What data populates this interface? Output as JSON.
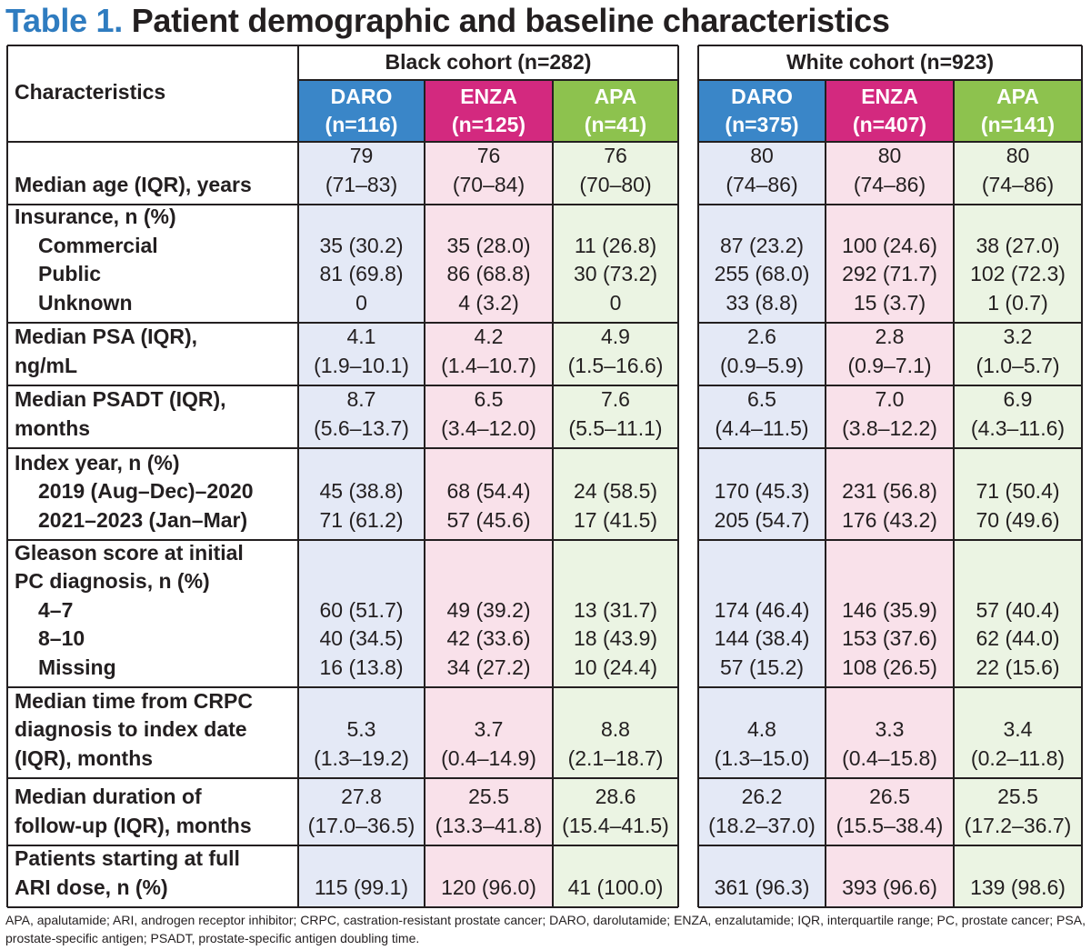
{
  "title": {
    "label": "Table 1.",
    "text": "Patient demographic and baseline characteristics"
  },
  "header": {
    "characteristics": "Characteristics",
    "cohorts": [
      {
        "name": "Black cohort (n=282)",
        "groups": [
          {
            "drug": "DARO",
            "n": "(n=116)"
          },
          {
            "drug": "ENZA",
            "n": "(n=125)"
          },
          {
            "drug": "APA",
            "n": "(n=41)"
          }
        ]
      },
      {
        "name": "White cohort (n=923)",
        "groups": [
          {
            "drug": "DARO",
            "n": "(n=375)"
          },
          {
            "drug": "ENZA",
            "n": "(n=407)"
          },
          {
            "drug": "APA",
            "n": "(n=141)"
          }
        ]
      }
    ]
  },
  "colors": {
    "DARO": "#3a86c8",
    "ENZA": "#d3297f",
    "APA": "#8dc24e",
    "DARO_bg": "#e4e9f6",
    "ENZA_bg": "#f9e1ea",
    "APA_bg": "#ebf4e3"
  },
  "rows": [
    {
      "label": [
        "Median age (IQR), years"
      ],
      "indent": [],
      "values": [
        [
          "79",
          "(71–83)"
        ],
        [
          "76",
          "(70–84)"
        ],
        [
          "76",
          "(70–80)"
        ],
        [
          "80",
          "(74–86)"
        ],
        [
          "80",
          "(74–86)"
        ],
        [
          "80",
          "(74–86)"
        ]
      ]
    },
    {
      "label": [
        "Insurance, n (%)"
      ],
      "indent": [
        "Commercial",
        "Public",
        "Unknown"
      ],
      "values": [
        [
          "35 (30.2)",
          "81 (69.8)",
          "0"
        ],
        [
          "35 (28.0)",
          "86 (68.8)",
          "4 (3.2)"
        ],
        [
          "11 (26.8)",
          "30 (73.2)",
          "0"
        ],
        [
          "87 (23.2)",
          "255 (68.0)",
          "33 (8.8)"
        ],
        [
          "100 (24.6)",
          "292 (71.7)",
          "15 (3.7)"
        ],
        [
          "38 (27.0)",
          "102 (72.3)",
          "1 (0.7)"
        ]
      ]
    },
    {
      "label": [
        "Median PSA (IQR),",
        "ng/mL"
      ],
      "indent": [],
      "values": [
        [
          "4.1",
          "(1.9–10.1)"
        ],
        [
          "4.2",
          "(1.4–10.7)"
        ],
        [
          "4.9",
          "(1.5–16.6)"
        ],
        [
          "2.6",
          "(0.9–5.9)"
        ],
        [
          "2.8",
          "(0.9–7.1)"
        ],
        [
          "3.2",
          "(1.0–5.7)"
        ]
      ]
    },
    {
      "label": [
        "Median PSADT (IQR),",
        "months"
      ],
      "indent": [],
      "values": [
        [
          "8.7",
          "(5.6–13.7)"
        ],
        [
          "6.5",
          "(3.4–12.0)"
        ],
        [
          "7.6",
          "(5.5–11.1)"
        ],
        [
          "6.5",
          "(4.4–11.5)"
        ],
        [
          "7.0",
          "(3.8–12.2)"
        ],
        [
          "6.9",
          "(4.3–11.6)"
        ]
      ]
    },
    {
      "label": [
        "Index year, n (%)"
      ],
      "indent": [
        "2019 (Aug–Dec)–2020",
        "2021–2023 (Jan–Mar)"
      ],
      "values": [
        [
          "45 (38.8)",
          "71 (61.2)"
        ],
        [
          "68 (54.4)",
          "57 (45.6)"
        ],
        [
          "24 (58.5)",
          "17 (41.5)"
        ],
        [
          "170 (45.3)",
          "205 (54.7)"
        ],
        [
          "231 (56.8)",
          "176 (43.2)"
        ],
        [
          "71 (50.4)",
          "70 (49.6)"
        ]
      ]
    },
    {
      "label": [
        "Gleason score at initial",
        "PC diagnosis, n (%)"
      ],
      "indent": [
        "4–7",
        "8–10",
        "Missing"
      ],
      "values": [
        [
          "60 (51.7)",
          "40 (34.5)",
          "16 (13.8)"
        ],
        [
          "49 (39.2)",
          "42 (33.6)",
          "34 (27.2)"
        ],
        [
          "13 (31.7)",
          "18 (43.9)",
          "10 (24.4)"
        ],
        [
          "174 (46.4)",
          "144 (38.4)",
          "57 (15.2)"
        ],
        [
          "146 (35.9)",
          "153 (37.6)",
          "108 (26.5)"
        ],
        [
          "57 (40.4)",
          "62 (44.0)",
          "22 (15.6)"
        ]
      ]
    },
    {
      "label": [
        "Median time from CRPC",
        "diagnosis to index date",
        "(IQR), months"
      ],
      "indent": [],
      "values": [
        [
          "5.3",
          "(1.3–19.2)"
        ],
        [
          "3.7",
          "(0.4–14.9)"
        ],
        [
          "8.8",
          "(2.1–18.7)"
        ],
        [
          "4.8",
          "(1.3–15.0)"
        ],
        [
          "3.3",
          "(0.4–15.8)"
        ],
        [
          "3.4",
          "(0.2–11.8)"
        ]
      ]
    },
    {
      "label": [
        "Median duration of",
        "follow-up (IQR), months"
      ],
      "indent": [],
      "values": [
        [
          "27.8",
          "(17.0–36.5)"
        ],
        [
          "25.5",
          "(13.3–41.8)"
        ],
        [
          "28.6",
          "(15.4–41.5)"
        ],
        [
          "26.2",
          "(18.2–37.0)"
        ],
        [
          "26.5",
          "(15.5–38.4)"
        ],
        [
          "25.5",
          "(17.2–36.7)"
        ]
      ]
    },
    {
      "label": [
        "Patients starting at full",
        "ARI dose, n (%)"
      ],
      "indent": [],
      "values": [
        [
          "115 (99.1)"
        ],
        [
          "120 (96.0)"
        ],
        [
          "41 (100.0)"
        ],
        [
          "361 (96.3)"
        ],
        [
          "393 (96.6)"
        ],
        [
          "139 (98.6)"
        ]
      ]
    }
  ],
  "footnote": "APA, apalutamide; ARI, androgen receptor inhibitor; CRPC, castration-resistant prostate cancer; DARO, darolutamide; ENZA, enzalutamide; IQR, interquartile range; PC, prostate cancer; PSA, prostate-specific antigen; PSADT, prostate-specific antigen doubling time."
}
